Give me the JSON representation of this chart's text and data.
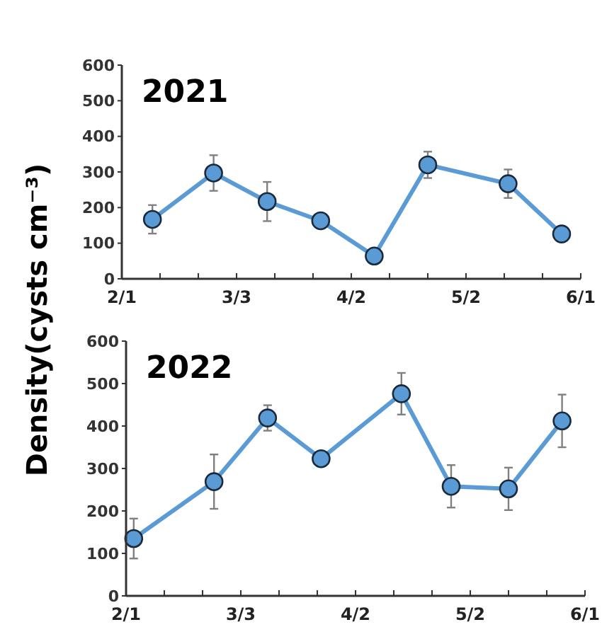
{
  "chart_data": [
    {
      "type": "line",
      "title": "2021",
      "ylabel": "Density(cysts cm⁻³)",
      "x": [
        "--02-09",
        "--02-25",
        "--03-11",
        "--03-25",
        "--04-08",
        "--04-22",
        "--05-13",
        "--05-27"
      ],
      "series": [
        {
          "color": "#5b9bd5",
          "values": [
            167,
            297,
            217,
            163,
            64,
            320,
            267,
            126
          ],
          "errors": [
            40,
            50,
            55,
            null,
            null,
            37,
            40,
            null
          ]
        }
      ],
      "xlim": [
        "--02-01",
        "--06-01"
      ],
      "xticks": [
        {
          "value": "--02-01",
          "label": "2/1"
        },
        {
          "value": "--02-11",
          "label": null
        },
        {
          "value": "--02-21",
          "label": null
        },
        {
          "value": "--03-03",
          "label": "3/3"
        },
        {
          "value": "--03-13",
          "label": null
        },
        {
          "value": "--03-23",
          "label": null
        },
        {
          "value": "--04-02",
          "label": "4/2"
        },
        {
          "value": "--04-12",
          "label": null
        },
        {
          "value": "--04-22",
          "label": null
        },
        {
          "value": "--05-02",
          "label": "5/2"
        },
        {
          "value": "--05-12",
          "label": null
        },
        {
          "value": "--05-22",
          "label": null
        },
        {
          "value": "--06-01",
          "label": "6/1"
        }
      ],
      "ylim": [
        0,
        600
      ],
      "yticks": [
        0,
        100,
        200,
        300,
        400,
        500,
        600
      ],
      "marker": "circle",
      "line_style": "solid"
    },
    {
      "type": "line",
      "title": "2022",
      "x": [
        "--02-03",
        "--02-24",
        "--03-10",
        "--03-24",
        "--04-14",
        "--04-27",
        "--05-12",
        "--05-26"
      ],
      "series": [
        {
          "color": "#5b9bd5",
          "values": [
            135,
            269,
            419,
            323,
            476,
            258,
            252,
            412
          ],
          "errors": [
            47,
            64,
            30,
            null,
            49,
            50,
            50,
            62
          ]
        }
      ],
      "xlim": [
        "--02-01",
        "--06-01"
      ],
      "xticks": [
        {
          "value": "--02-01",
          "label": "2/1"
        },
        {
          "value": "--02-11",
          "label": null
        },
        {
          "value": "--02-21",
          "label": null
        },
        {
          "value": "--03-03",
          "label": "3/3"
        },
        {
          "value": "--03-13",
          "label": null
        },
        {
          "value": "--03-23",
          "label": null
        },
        {
          "value": "--04-02",
          "label": "4/2"
        },
        {
          "value": "--04-12",
          "label": null
        },
        {
          "value": "--04-22",
          "label": null
        },
        {
          "value": "--05-02",
          "label": "5/2"
        },
        {
          "value": "--05-12",
          "label": null
        },
        {
          "value": "--05-22",
          "label": null
        },
        {
          "value": "--06-01",
          "label": "6/1"
        }
      ],
      "ylim": [
        0,
        600
      ],
      "yticks": [
        0,
        100,
        200,
        300,
        400,
        500,
        600
      ],
      "marker": "circle",
      "line_style": "solid"
    }
  ]
}
